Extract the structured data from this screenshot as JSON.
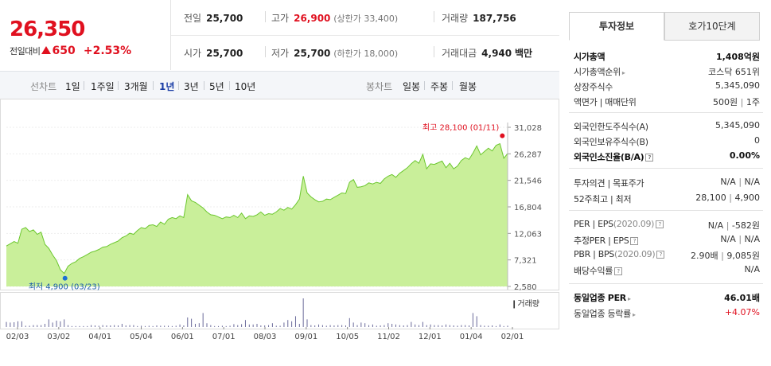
{
  "price": {
    "current": "26,350",
    "change_label": "전일대비",
    "change_amount": "650",
    "change_pct": "+2.53%"
  },
  "quote": {
    "prev_close_label": "전일",
    "prev_close": "25,700",
    "high_label": "고가",
    "high": "26,900",
    "upper_limit": "(상한가 33,400)",
    "volume_label": "거래량",
    "volume": "187,756",
    "open_label": "시가",
    "open": "25,700",
    "low_label": "저가",
    "low": "25,700",
    "lower_limit": "(하한가 18,000)",
    "amount_label": "거래대금",
    "amount": "4,940",
    "amount_unit": "백만"
  },
  "toolbar": {
    "line_chart_label": "선차트",
    "ranges": [
      "1일",
      "1주일",
      "3개월",
      "1년",
      "3년",
      "5년",
      "10년"
    ],
    "selected_range": "1년",
    "candle_label": "봉차트",
    "candles": [
      "일봉",
      "주봉",
      "월봉"
    ]
  },
  "chart_data": {
    "type": "area",
    "price_axis_ticks": [
      "31,028",
      "26,287",
      "21,546",
      "16,804",
      "12,063",
      "7,321",
      "2,580"
    ],
    "ylim": [
      2580,
      31028
    ],
    "x_tick_labels": [
      "02/03",
      "03/02",
      "04/01",
      "05/04",
      "06/01",
      "07/01",
      "08/03",
      "09/01",
      "10/05",
      "11/02",
      "12/01",
      "01/04",
      "02/01"
    ],
    "high_annotation": "최고 28,100 (01/11)",
    "low_annotation": "최저 4,900 (03/23)",
    "volume_label": "거래량",
    "series": [
      {
        "values": [
          9800,
          10200,
          10600,
          10300,
          12800,
          13100,
          12400,
          12700,
          11900,
          12300,
          10100,
          9400,
          8200,
          7200,
          5600,
          4900,
          6200,
          6700,
          7000,
          7600,
          7900,
          8300,
          8700,
          8900,
          9200,
          9600,
          9700,
          10100,
          10400,
          10700,
          11300,
          11600,
          12100,
          11900,
          12600,
          13100,
          12900,
          13500,
          13600,
          13300,
          14100,
          13700,
          14600,
          14900,
          14700,
          15200,
          14900,
          19000,
          17900,
          17600,
          17100,
          16600,
          15900,
          15400,
          15300,
          15000,
          14700,
          15000,
          14900,
          15300,
          14900,
          15700,
          14700,
          15200,
          15100,
          15400,
          15900,
          15300,
          15600,
          15500,
          15900,
          16500,
          16200,
          16700,
          16400,
          17200,
          18200,
          22300,
          19300,
          18600,
          18100,
          17700,
          17800,
          18200,
          18100,
          18500,
          18900,
          19300,
          19200,
          21200,
          21700,
          20300,
          20400,
          20600,
          21100,
          20900,
          21200,
          21000,
          21800,
          22300,
          22600,
          22100,
          22800,
          23300,
          23800,
          24500,
          25100,
          24600,
          26200,
          23600,
          24500,
          24400,
          24700,
          25000,
          23800,
          24600,
          23600,
          24100,
          25100,
          25600,
          25300,
          26400,
          27700,
          26100,
          26700,
          27300,
          26800,
          27800,
          28100,
          25500,
          26350
        ]
      }
    ],
    "volume": [
      0.16,
      0.14,
      0.15,
      0.18,
      0.18,
      0.04,
      0.04,
      0.06,
      0.06,
      0.06,
      0.1,
      0.24,
      0.14,
      0.2,
      0.18,
      0.24,
      0.06,
      0.03,
      0.03,
      0.03,
      0.03,
      0.03,
      0.06,
      0.05,
      0.04,
      0.06,
      0.05,
      0.05,
      0.06,
      0.05,
      0.1,
      0.05,
      0.06,
      0.06,
      0.03,
      0.04,
      0.03,
      0.04,
      0.03,
      0.05,
      0.04,
      0.04,
      0.04,
      0.03,
      0.04,
      0.08,
      0.05,
      0.3,
      0.26,
      0.1,
      0.12,
      0.44,
      0.12,
      0.06,
      0.03,
      0.03,
      0.04,
      0.03,
      0.04,
      0.09,
      0.06,
      0.09,
      0.22,
      0.08,
      0.08,
      0.1,
      0.05,
      0.05,
      0.06,
      0.12,
      0.04,
      0.04,
      0.14,
      0.22,
      0.18,
      0.34,
      0.1,
      0.9,
      0.24,
      0.06,
      0.05,
      0.08,
      0.06,
      0.04,
      0.06,
      0.05,
      0.06,
      0.06,
      0.05,
      0.28,
      0.14,
      0.06,
      0.14,
      0.12,
      0.06,
      0.08,
      0.04,
      0.05,
      0.06,
      0.12,
      0.1,
      0.08,
      0.06,
      0.05,
      0.06,
      0.16,
      0.08,
      0.06,
      0.16,
      0.06,
      0.08,
      0.06,
      0.06,
      0.05,
      0.08,
      0.06,
      0.05,
      0.04,
      0.06,
      0.06,
      0.05,
      0.44,
      0.34,
      0.06,
      0.04,
      0.04,
      0.05,
      0.03,
      0.08,
      0.03,
      0.04
    ]
  },
  "right_panel": {
    "tabs": [
      "투자정보",
      "호가10단계"
    ],
    "market_cap_label": "시가총액",
    "market_cap": "1,408억원",
    "market_rank_label": "시가총액순위",
    "market_rank": "코스닥 651위",
    "shares_label": "상장주식수",
    "shares": "5,345,090",
    "par_label": "액면가 | 매매단위",
    "par": "500원",
    "unit": "1주",
    "foreign_limit_label": "외국인한도주식수(A)",
    "foreign_limit": "5,345,090",
    "foreign_hold_label": "외국인보유주식수(B)",
    "foreign_hold": "0",
    "foreign_ratio_label": "외국인소진율(B/A)",
    "foreign_ratio": "0.00%",
    "opinion_label": "투자의견 | 목표주가",
    "opinion": "N/A",
    "target": "N/A",
    "week52_label": "52주최고 | 최저",
    "week52_high": "28,100",
    "week52_low": "4,900",
    "per_label": "PER | EPS",
    "per_year": "(2020.09)",
    "per": "N/A",
    "eps": "-582원",
    "est_per_label": "추정PER | EPS",
    "est_per": "N/A",
    "est_eps": "N/A",
    "pbr_label": "PBR | BPS",
    "pbr_year": "(2020.09)",
    "pbr": "2.90배",
    "bps": "9,085원",
    "dividend_label": "배당수익률",
    "dividend": "N/A",
    "sector_per_label": "동일업종 PER",
    "sector_per": "46.01배",
    "sector_chg_label": "동일업종 등락률",
    "sector_chg": "+4.07%"
  },
  "colors": {
    "up": "#e0101f",
    "area_fill": "#c9ef9a",
    "area_line": "#6cc72f",
    "low_marker": "#1a6fd6"
  }
}
